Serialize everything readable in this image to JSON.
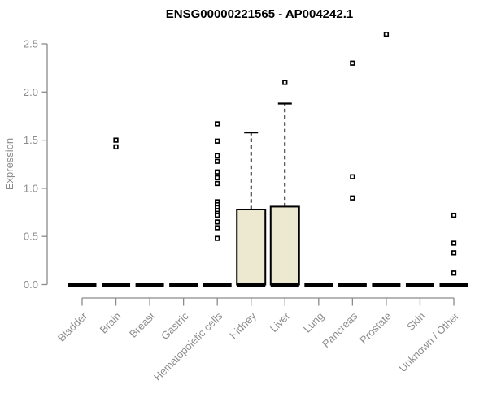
{
  "chart_data": {
    "type": "boxplot",
    "title": "ENSG00000221565 - AP004242.1",
    "xlabel": "",
    "ylabel": "Expression",
    "ylim": [
      0,
      2.5
    ],
    "yticks": [
      "0.0",
      "0.5",
      "1.0",
      "1.5",
      "2.0",
      "2.5"
    ],
    "grid": false,
    "legend": "none",
    "colors": {
      "box_fill": "#EDE8D0",
      "box_stroke": "#000000",
      "median": "#000000",
      "outlier_fill": "#FFFFFF",
      "outlier_stroke": "#000000",
      "axis_line": "#8A8A8A",
      "tick_label": "#8C8C8C",
      "title": "#000000",
      "background": "#FFFFFF"
    },
    "categories": [
      "Bladder",
      "Brain",
      "Breast",
      "Gastric",
      "Hematopoietic cells",
      "Kidney",
      "Liver",
      "Lung",
      "Pancreas",
      "Prostate",
      "Skin",
      "Unknown / Other"
    ],
    "boxes": [
      {
        "category": "Bladder",
        "q1": 0,
        "median": 0,
        "q3": 0,
        "whisker_low": 0,
        "whisker_high": 0,
        "outliers": []
      },
      {
        "category": "Brain",
        "q1": 0,
        "median": 0,
        "q3": 0,
        "whisker_low": 0,
        "whisker_high": 0,
        "outliers": [
          1.5,
          1.43
        ]
      },
      {
        "category": "Breast",
        "q1": 0,
        "median": 0,
        "q3": 0,
        "whisker_low": 0,
        "whisker_high": 0,
        "outliers": []
      },
      {
        "category": "Gastric",
        "q1": 0,
        "median": 0,
        "q3": 0,
        "whisker_low": 0,
        "whisker_high": 0,
        "outliers": []
      },
      {
        "category": "Hematopoietic cells",
        "q1": 0,
        "median": 0,
        "q3": 0,
        "whisker_low": 0,
        "whisker_high": 0,
        "outliers": [
          1.67,
          1.49,
          1.34,
          1.28,
          1.17,
          1.11,
          1.05,
          0.86,
          0.83,
          0.8,
          0.77,
          0.74,
          0.72,
          0.65,
          0.59,
          0.48
        ]
      },
      {
        "category": "Kidney",
        "q1": 0,
        "median": 0,
        "q3": 0.78,
        "whisker_low": 0,
        "whisker_high": 1.58,
        "outliers": []
      },
      {
        "category": "Liver",
        "q1": 0,
        "median": 0,
        "q3": 0.81,
        "whisker_low": 0,
        "whisker_high": 1.88,
        "outliers": [
          2.1
        ]
      },
      {
        "category": "Lung",
        "q1": 0,
        "median": 0,
        "q3": 0,
        "whisker_low": 0,
        "whisker_high": 0,
        "outliers": []
      },
      {
        "category": "Pancreas",
        "q1": 0,
        "median": 0,
        "q3": 0,
        "whisker_low": 0,
        "whisker_high": 0,
        "outliers": [
          2.3,
          1.12,
          0.9
        ]
      },
      {
        "category": "Prostate",
        "q1": 0,
        "median": 0,
        "q3": 0,
        "whisker_low": 0,
        "whisker_high": 0,
        "outliers": [
          2.6
        ]
      },
      {
        "category": "Skin",
        "q1": 0,
        "median": 0,
        "q3": 0,
        "whisker_low": 0,
        "whisker_high": 0,
        "outliers": []
      },
      {
        "category": "Unknown / Other",
        "q1": 0,
        "median": 0,
        "q3": 0,
        "whisker_low": 0,
        "whisker_high": 0,
        "outliers": [
          0.72,
          0.43,
          0.33,
          0.12
        ]
      }
    ]
  }
}
